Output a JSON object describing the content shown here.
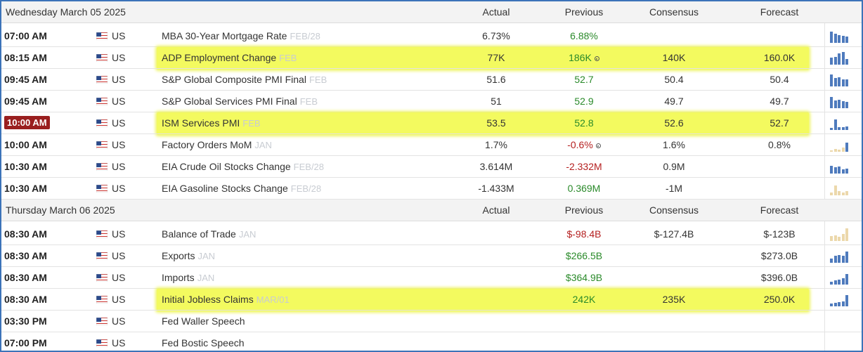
{
  "columns": {
    "actual": "Actual",
    "previous": "Previous",
    "consensus": "Consensus",
    "forecast": "Forecast"
  },
  "colors": {
    "frame": "#3c73b9",
    "highlight": "#f3fa5f",
    "positive": "#2a8a2a",
    "negative": "#b52020",
    "spark_blue": "#4f7bbd",
    "spark_tan": "#ecd8ab",
    "time_badge": "#9a1f1f"
  },
  "sections": [
    {
      "date": "Wednesday March 05 2025",
      "events": [
        {
          "time": "07:00 AM",
          "country": "US",
          "name": "MBA 30-Year Mortgage Rate",
          "period": "FEB/28",
          "actual": "6.73%",
          "previous": "6.88%",
          "prev_color": "green",
          "consensus": "",
          "forecast": "",
          "spark": "blue",
          "spark_bars": [
            0.85,
            0.7,
            0.6,
            0.5,
            0.45
          ],
          "highlight": false
        },
        {
          "time": "08:15 AM",
          "country": "US",
          "name": "ADP Employment Change",
          "period": "FEB",
          "actual": "77K",
          "previous": "186K",
          "prev_color": "green",
          "prev_revised": true,
          "consensus": "140K",
          "forecast": "160.0K",
          "spark": "blue",
          "spark_bars": [
            0.55,
            0.6,
            0.85,
            0.95,
            0.4
          ],
          "highlight": true
        },
        {
          "time": "09:45 AM",
          "country": "US",
          "name": "S&P Global Composite PMI Final",
          "period": "FEB",
          "actual": "51.6",
          "previous": "52.7",
          "prev_color": "green",
          "consensus": "50.4",
          "forecast": "50.4",
          "spark": "blue",
          "spark_bars": [
            0.9,
            0.65,
            0.7,
            0.55,
            0.5
          ],
          "highlight": false
        },
        {
          "time": "09:45 AM",
          "country": "US",
          "name": "S&P Global Services PMI Final",
          "period": "FEB",
          "actual": "51",
          "previous": "52.9",
          "prev_color": "green",
          "consensus": "49.7",
          "forecast": "49.7",
          "spark": "blue",
          "spark_bars": [
            0.85,
            0.6,
            0.65,
            0.5,
            0.45
          ],
          "highlight": false
        },
        {
          "time": "10:00 AM",
          "country": "US",
          "name": "ISM Services PMI",
          "period": "FEB",
          "actual": "53.5",
          "previous": "52.8",
          "prev_color": "green",
          "consensus": "52.6",
          "forecast": "52.7",
          "spark": "blue",
          "spark_bars": [
            0.15,
            0.8,
            0.2,
            0.2,
            0.25
          ],
          "highlight": true,
          "time_badge": true
        },
        {
          "time": "10:00 AM",
          "country": "US",
          "name": "Factory Orders MoM",
          "period": "JAN",
          "actual": "1.7%",
          "previous": "-0.6%",
          "prev_color": "red",
          "prev_revised": true,
          "consensus": "1.6%",
          "forecast": "0.8%",
          "spark": "mixed",
          "spark_bars": [
            0.1,
            0.2,
            0.15,
            0.3,
            0.7
          ],
          "highlight": false
        },
        {
          "time": "10:30 AM",
          "country": "US",
          "name": "EIA Crude Oil Stocks Change",
          "period": "FEB/28",
          "actual": "3.614M",
          "previous": "-2.332M",
          "prev_color": "red",
          "consensus": "0.9M",
          "forecast": "",
          "spark": "blue",
          "spark_bars": [
            0.6,
            0.45,
            0.5,
            0.3,
            0.35
          ],
          "highlight": false
        },
        {
          "time": "10:30 AM",
          "country": "US",
          "name": "EIA Gasoline Stocks Change",
          "period": "FEB/28",
          "actual": "-1.433M",
          "previous": "0.369M",
          "prev_color": "green",
          "consensus": "-1M",
          "forecast": "",
          "spark": "tan",
          "spark_bars": [
            0.2,
            0.75,
            0.3,
            0.2,
            0.3
          ],
          "highlight": false
        }
      ]
    },
    {
      "date": "Thursday March 06 2025",
      "events": [
        {
          "time": "08:30 AM",
          "country": "US",
          "name": "Balance of Trade",
          "period": "JAN",
          "actual": "",
          "previous": "$-98.4B",
          "prev_color": "red",
          "consensus": "$-127.4B",
          "forecast": "$-123B",
          "spark": "tan",
          "spark_bars": [
            0.35,
            0.4,
            0.3,
            0.5,
            0.95
          ],
          "highlight": false
        },
        {
          "time": "08:30 AM",
          "country": "US",
          "name": "Exports",
          "period": "JAN",
          "actual": "",
          "previous": "$266.5B",
          "prev_color": "green",
          "consensus": "",
          "forecast": "$273.0B",
          "spark": "blue",
          "spark_bars": [
            0.3,
            0.55,
            0.6,
            0.5,
            0.85
          ],
          "highlight": false
        },
        {
          "time": "08:30 AM",
          "country": "US",
          "name": "Imports",
          "period": "JAN",
          "actual": "",
          "previous": "$364.9B",
          "prev_color": "green",
          "consensus": "",
          "forecast": "$396.0B",
          "spark": "blue",
          "spark_bars": [
            0.2,
            0.3,
            0.35,
            0.45,
            0.8
          ],
          "highlight": false
        },
        {
          "time": "08:30 AM",
          "country": "US",
          "name": "Initial Jobless Claims",
          "period": "MAR/01",
          "actual": "",
          "previous": "242K",
          "prev_color": "green",
          "consensus": "235K",
          "forecast": "250.0K",
          "spark": "blue",
          "spark_bars": [
            0.2,
            0.25,
            0.3,
            0.35,
            0.85
          ],
          "highlight": true
        },
        {
          "time": "03:30 PM",
          "country": "US",
          "name": "Fed Waller Speech",
          "period": "",
          "actual": "",
          "previous": "",
          "consensus": "",
          "forecast": "",
          "spark": "none",
          "highlight": false
        },
        {
          "time": "07:00 PM",
          "country": "US",
          "name": "Fed Bostic Speech",
          "period": "",
          "actual": "",
          "previous": "",
          "consensus": "",
          "forecast": "",
          "spark": "none",
          "highlight": false
        }
      ]
    }
  ]
}
